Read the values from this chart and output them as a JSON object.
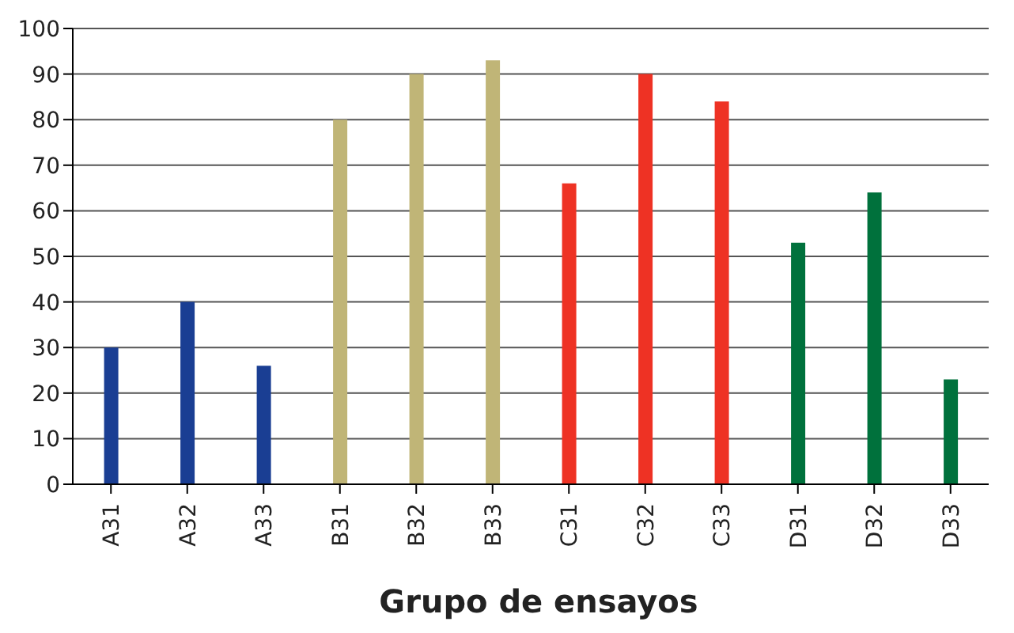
{
  "chart_data": {
    "type": "bar",
    "xlabel": "Grupo de ensayos",
    "categories": [
      "A31",
      "A32",
      "A33",
      "B31",
      "B32",
      "B33",
      "C31",
      "C32",
      "C33",
      "D31",
      "D32",
      "D33"
    ],
    "values": [
      30,
      40,
      26,
      80,
      90,
      93,
      66,
      90,
      84,
      53,
      64,
      23
    ],
    "colors": [
      "#1a3e93",
      "#1a3e93",
      "#1a3e93",
      "#c0b577",
      "#c0b577",
      "#c0b577",
      "#ee3224",
      "#ee3224",
      "#ee3224",
      "#00713c",
      "#00713c",
      "#00713c"
    ],
    "ylim": [
      0,
      100
    ],
    "yticks": [
      0,
      10,
      20,
      30,
      40,
      50,
      60,
      70,
      80,
      90,
      100
    ],
    "grid": "y"
  }
}
